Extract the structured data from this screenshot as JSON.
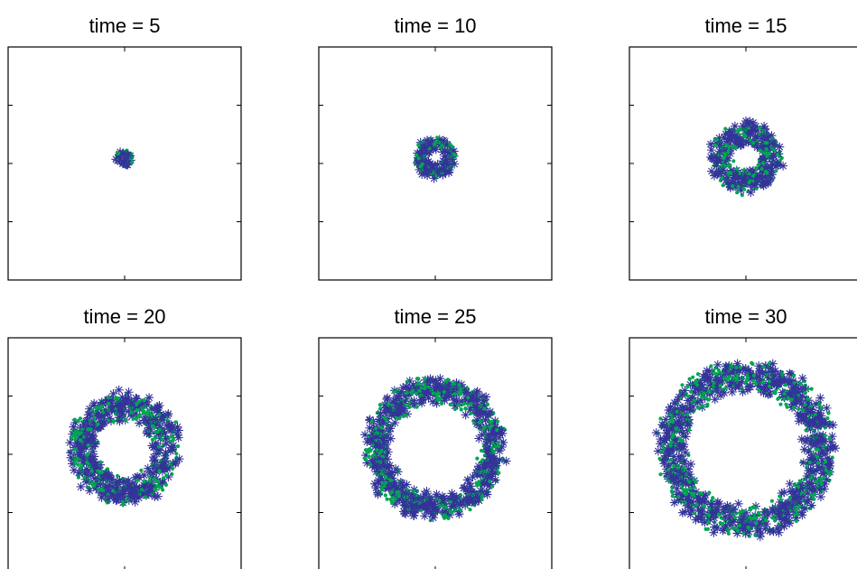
{
  "chart_data": [
    {
      "type": "scatter",
      "title": "time = 5",
      "time": 5,
      "spread": 0.07,
      "hole": 0.0,
      "n": 50
    },
    {
      "type": "scatter",
      "title": "time = 10",
      "time": 10,
      "spread": 0.17,
      "hole": 0.0,
      "n": 220
    },
    {
      "type": "scatter",
      "title": "time = 15",
      "time": 15,
      "spread": 0.3,
      "hole": 0.0,
      "n": 420
    },
    {
      "type": "scatter",
      "title": "time = 20",
      "time": 20,
      "spread": 0.46,
      "hole": 0.12,
      "n": 750
    },
    {
      "type": "scatter",
      "title": "time = 25",
      "time": 25,
      "spread": 0.58,
      "hole": 0.3,
      "n": 1000
    },
    {
      "type": "scatter",
      "title": "time = 30",
      "time": 30,
      "spread": 0.72,
      "hole": 0.4,
      "n": 1250
    }
  ],
  "series_colors": {
    "star_marker": "#333399",
    "dot_marker": "#00a651"
  },
  "axes": {
    "xlim": [
      -1,
      1
    ],
    "ylim": [
      -1,
      1
    ],
    "tick_labels": false,
    "grid": false
  }
}
